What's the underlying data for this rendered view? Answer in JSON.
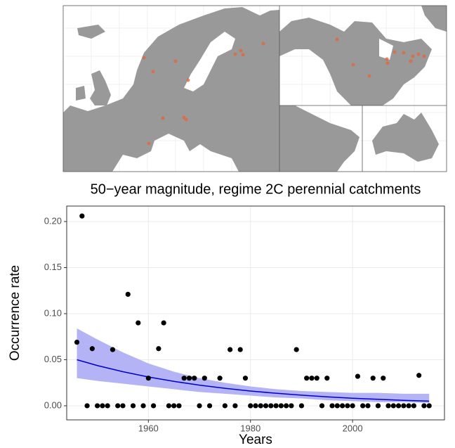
{
  "chart_data": {
    "type": "scatter",
    "title": "50−year magnitude, regime 2C perennial catchments",
    "xlabel": "Years",
    "ylabel": "Occurrence rate",
    "xlim": [
      1944,
      2018
    ],
    "xticks": [
      1960,
      1980,
      2000
    ],
    "ylim": [
      -0.0153,
      0.2168
    ],
    "yticks": [
      {
        "value": 0,
        "label": "0.00"
      },
      {
        "value": 0.05,
        "label": "0.05"
      },
      {
        "value": 0.1,
        "label": "0.10"
      },
      {
        "value": 0.15,
        "label": "0.15"
      },
      {
        "value": 0.2,
        "label": "0.20"
      }
    ],
    "grid": true,
    "points": {
      "color": "#000000",
      "x": [
        1946,
        1947,
        1949,
        1953,
        1956,
        1958,
        1960,
        1962,
        1963,
        1967,
        1968,
        1969,
        1971,
        1974,
        1976,
        1978,
        1979,
        1989,
        1991,
        1992,
        1993,
        1995,
        2001,
        2004,
        2006,
        2013,
        1948,
        1950,
        1951,
        1952,
        1954,
        1955,
        1957,
        1959,
        1961,
        1964,
        1965,
        1966,
        1970,
        1972,
        1975,
        1977,
        1980,
        1981,
        1982,
        1983,
        1984,
        1985,
        1986,
        1987,
        1988,
        1990,
        1994,
        1996,
        1997,
        1998,
        1999,
        2000,
        2002,
        2003,
        2005,
        2007,
        2008,
        2009,
        2010,
        2011,
        2012,
        2014,
        2015
      ],
      "y": [
        0.069,
        0.206,
        0.062,
        0.061,
        0.121,
        0.09,
        0.03,
        0.062,
        0.09,
        0.03,
        0.03,
        0.03,
        0.03,
        0.03,
        0.061,
        0.061,
        0.03,
        0.061,
        0.03,
        0.03,
        0.03,
        0.03,
        0.032,
        0.03,
        0.03,
        0.033,
        0,
        0,
        0,
        0,
        0,
        0,
        0,
        0,
        0,
        0,
        0,
        0,
        0,
        0,
        0,
        0,
        0,
        0,
        0,
        0,
        0,
        0,
        0,
        0,
        0,
        0,
        0,
        0,
        0,
        0,
        0,
        0,
        0,
        0,
        0,
        0,
        0,
        0,
        0,
        0,
        0,
        0,
        0
      ]
    },
    "fit": {
      "color": "#0000cc",
      "band_color": "#b3b3f5",
      "x": [
        1946,
        1950,
        1955,
        1960,
        1965,
        1970,
        1975,
        1980,
        1985,
        1990,
        1995,
        2000,
        2005,
        2010,
        2015
      ],
      "y": [
        0.05,
        0.0437,
        0.037,
        0.0313,
        0.0265,
        0.0224,
        0.019,
        0.016,
        0.0136,
        0.0115,
        0.0097,
        0.0082,
        0.007,
        0.0059,
        0.005
      ],
      "upper": [
        0.084,
        0.072,
        0.058,
        0.046,
        0.037,
        0.03,
        0.025,
        0.021,
        0.018,
        0.016,
        0.015,
        0.014,
        0.014,
        0.013,
        0.013
      ],
      "lower": [
        0.03,
        0.027,
        0.024,
        0.021,
        0.018,
        0.015,
        0.013,
        0.011,
        0.009,
        0.008,
        0.006,
        0.005,
        0.004,
        0.004,
        0.003
      ]
    }
  }
}
